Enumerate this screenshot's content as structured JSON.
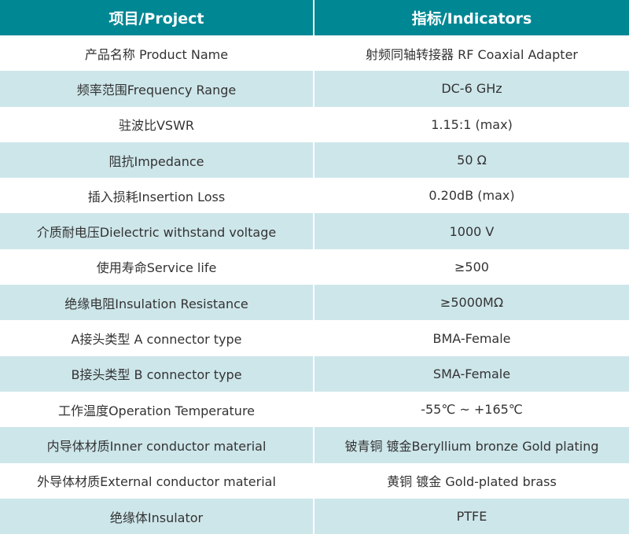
{
  "colors": {
    "header": "#008794",
    "alt_row": "#cde6ea"
  },
  "header": [
    "项目/Project",
    "指标/Indicators"
  ],
  "rows": [
    [
      "产品名称 Product Name",
      "射频同轴转接器 RF Coaxial Adapter"
    ],
    [
      "频率范围Frequency Range",
      "DC-6 GHz"
    ],
    [
      "驻波比VSWR",
      "1.15:1 (max)"
    ],
    [
      "阻抗Impedance",
      "50 Ω"
    ],
    [
      "插入损耗Insertion Loss",
      "0.20dB (max)"
    ],
    [
      "介质耐电压Dielectric withstand voltage",
      "1000 V"
    ],
    [
      "使用寿命Service life",
      "≥500"
    ],
    [
      "绝缘电阻Insulation Resistance",
      "≥5000MΩ"
    ],
    [
      "A接头类型 A connector type",
      "BMA-Female"
    ],
    [
      "B接头类型 B connector type",
      "SMA-Female"
    ],
    [
      "工作温度Operation Temperature",
      "-55℃ ~ +165℃"
    ],
    [
      "内导体材质Inner conductor material",
      "铍青铜 镀金Beryllium bronze Gold plating"
    ],
    [
      "外导体材质External conductor material",
      "黄铜 镀金 Gold-plated brass"
    ],
    [
      "绝缘体Insulator",
      "PTFE"
    ]
  ]
}
